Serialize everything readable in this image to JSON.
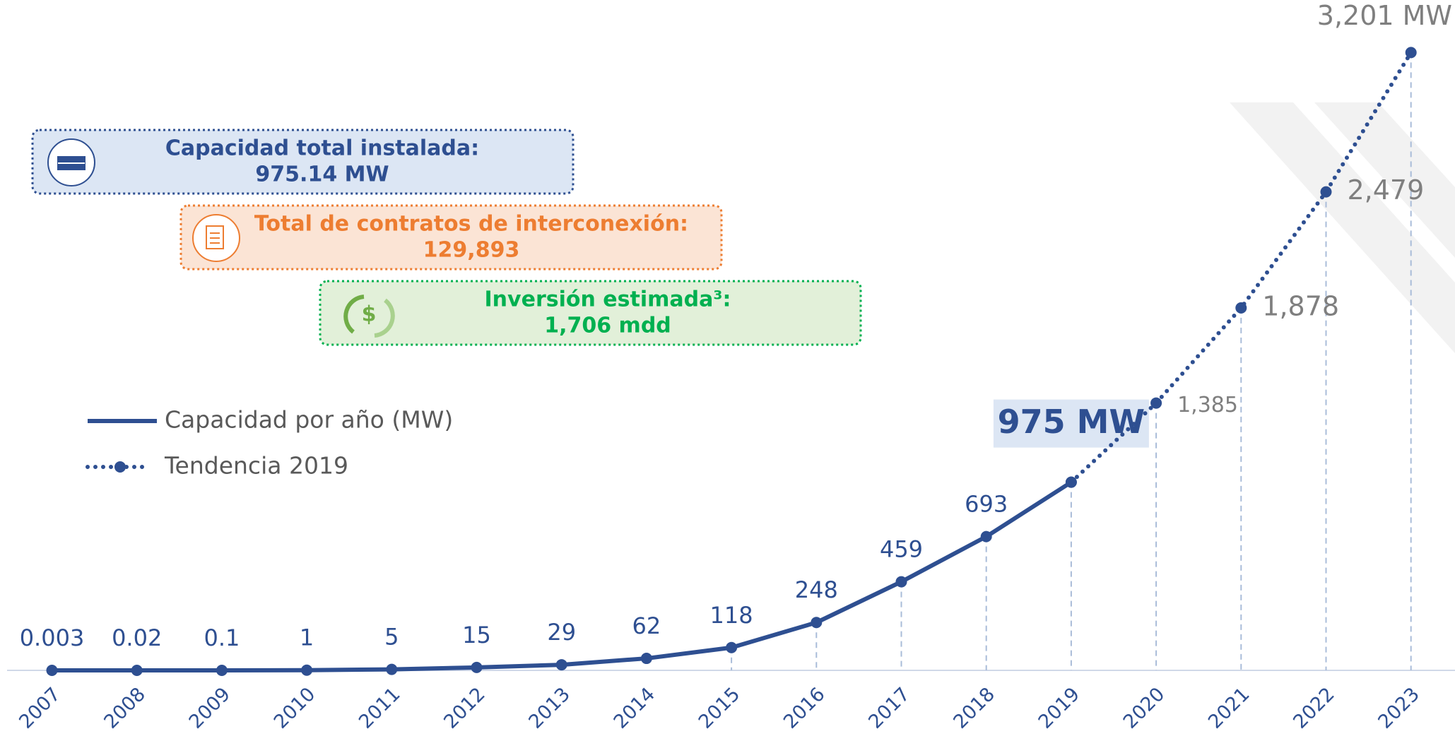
{
  "chart_data": {
    "type": "line",
    "categories": [
      "2007",
      "2008",
      "2009",
      "2010",
      "2011",
      "2012",
      "2013",
      "2014",
      "2015",
      "2016",
      "2017",
      "2018",
      "2019",
      "2020",
      "2021",
      "2022",
      "2023"
    ],
    "ylim": [
      0,
      3400
    ],
    "series": [
      {
        "name": "Capacidad por año (MW)",
        "color": "#2e4f91",
        "style": "solid",
        "values": [
          0.003,
          0.02,
          0.1,
          1,
          5,
          15,
          29,
          62,
          118,
          248,
          459,
          693,
          975,
          null,
          null,
          null,
          null
        ],
        "value_labels": [
          "0.003",
          "0.02",
          "0.1",
          "1",
          "5",
          "15",
          "29",
          "62",
          "118",
          "248",
          "459",
          "693",
          "975 MW",
          null,
          null,
          null,
          null
        ]
      },
      {
        "name": "Tendencia 2019",
        "color": "#2e4f91",
        "style": "dotted",
        "values": [
          null,
          null,
          null,
          null,
          null,
          null,
          null,
          null,
          null,
          null,
          null,
          null,
          975,
          1385,
          1878,
          2479,
          3201
        ],
        "value_labels": [
          null,
          null,
          null,
          null,
          null,
          null,
          null,
          null,
          null,
          null,
          null,
          null,
          null,
          "1,385",
          "1,878",
          "2,479",
          "3,201 MW"
        ]
      }
    ],
    "info_boxes": [
      {
        "title": "Capacidad total instalada:",
        "value": "975.14 MW",
        "color": "#2e4f91",
        "fill": "#dce6f4"
      },
      {
        "title": "Total de contratos de interconexión:",
        "value": "129,893",
        "color": "#ed7d31",
        "fill": "#fbe4d5"
      },
      {
        "title": "Inversión estimada³:",
        "value": "1,706 mdd",
        "color": "#00b050",
        "fill": "#e2f0d9"
      }
    ]
  }
}
